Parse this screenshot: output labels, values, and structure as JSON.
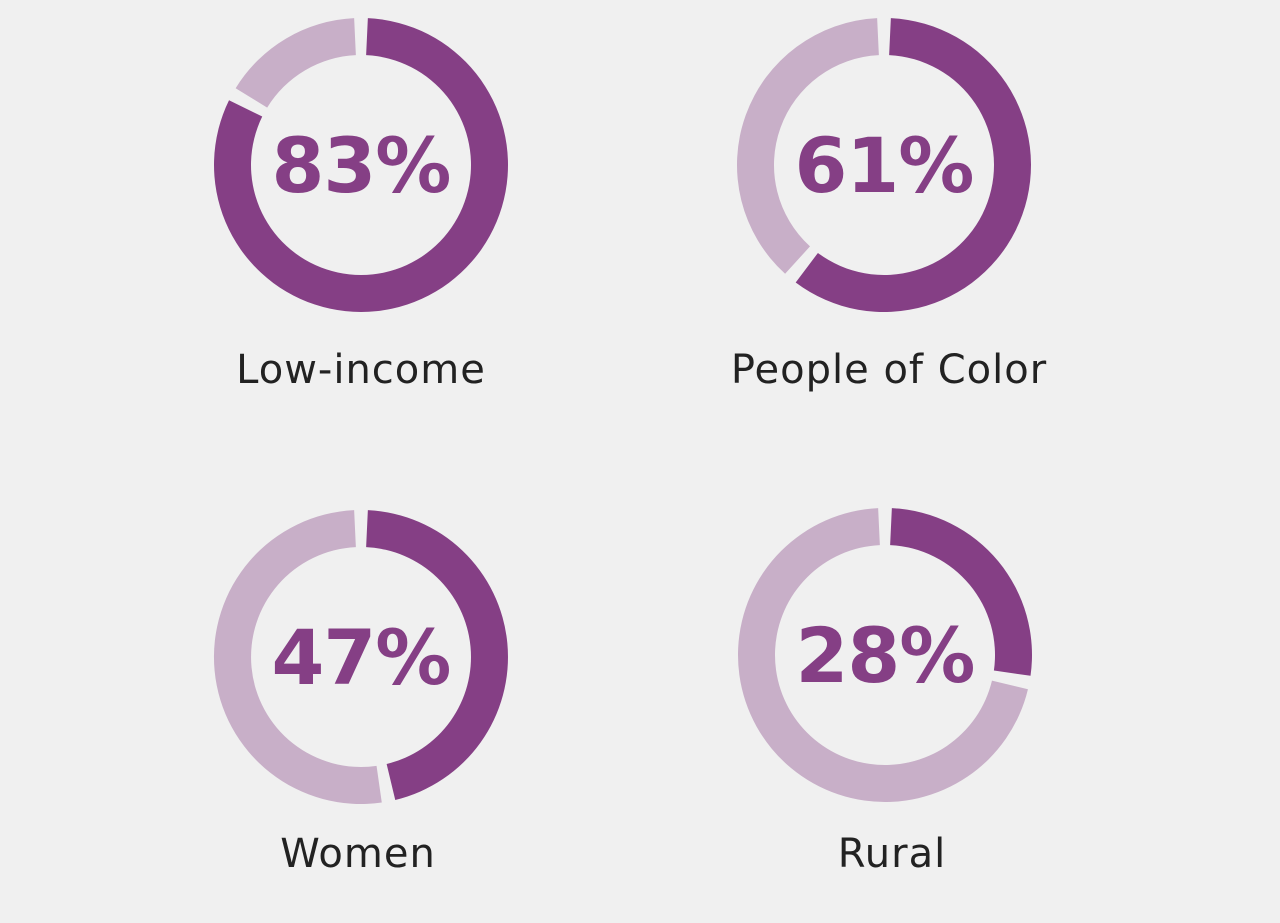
{
  "chart_data": [
    {
      "type": "pie",
      "category": "Low-income",
      "value": 83,
      "value_label": "83%",
      "colors": {
        "filled": "#853f85",
        "remainder": "#c8afc8"
      }
    },
    {
      "type": "pie",
      "category": "People of Color",
      "value": 61,
      "value_label": "61%",
      "colors": {
        "filled": "#853f85",
        "remainder": "#c8afc8"
      }
    },
    {
      "type": "pie",
      "category": "Women",
      "value": 47,
      "value_label": "47%",
      "colors": {
        "filled": "#853f85",
        "remainder": "#c8afc8"
      }
    },
    {
      "type": "pie",
      "category": "Rural",
      "value": 28,
      "value_label": "28%",
      "colors": {
        "filled": "#853f85",
        "remainder": "#c8afc8"
      }
    }
  ]
}
